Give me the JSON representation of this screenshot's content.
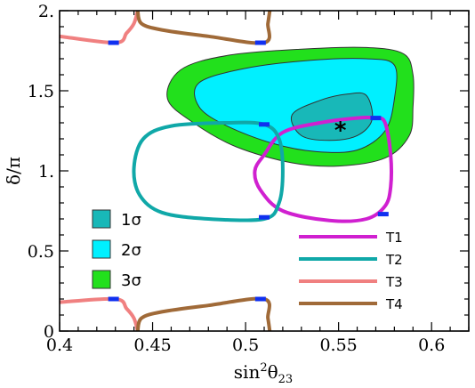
{
  "chart_data": {
    "type": "contour",
    "xlabel_base": "sin",
    "xlabel_sup": "2",
    "xlabel_theta": "θ",
    "xlabel_sub": "23",
    "ylabel": "δ/π",
    "xlim": [
      0.4,
      0.62
    ],
    "ylim": [
      0,
      2
    ],
    "x_ticks": [
      {
        "v": 0.4,
        "label": "0.4"
      },
      {
        "v": 0.45,
        "label": "0.45"
      },
      {
        "v": 0.5,
        "label": "0.5"
      },
      {
        "v": 0.55,
        "label": "0.55"
      },
      {
        "v": 0.6,
        "label": "0.6"
      }
    ],
    "y_ticks": [
      {
        "v": 0,
        "label": "0"
      },
      {
        "v": 0.5,
        "label": "0.5"
      },
      {
        "v": 1,
        "label": "1."
      },
      {
        "v": 1.5,
        "label": "1.5"
      },
      {
        "v": 2,
        "label": "2."
      }
    ],
    "best_fit": {
      "x": 0.551,
      "y": 1.3,
      "marker": "*"
    },
    "regions": [
      {
        "name": "3σ",
        "color": "#22e01c",
        "points": [
          [
            0.465,
            1.63
          ],
          [
            0.49,
            1.72
          ],
          [
            0.53,
            1.76
          ],
          [
            0.565,
            1.77
          ],
          [
            0.585,
            1.73
          ],
          [
            0.59,
            1.6
          ],
          [
            0.59,
            1.4
          ],
          [
            0.588,
            1.22
          ],
          [
            0.575,
            1.08
          ],
          [
            0.55,
            1.03
          ],
          [
            0.525,
            1.05
          ],
          [
            0.495,
            1.15
          ],
          [
            0.472,
            1.3
          ],
          [
            0.458,
            1.45
          ]
        ]
      },
      {
        "name": "2σ",
        "color": "#00f0ff",
        "points": [
          [
            0.475,
            1.55
          ],
          [
            0.5,
            1.64
          ],
          [
            0.535,
            1.69
          ],
          [
            0.565,
            1.7
          ],
          [
            0.58,
            1.66
          ],
          [
            0.58,
            1.45
          ],
          [
            0.575,
            1.25
          ],
          [
            0.56,
            1.13
          ],
          [
            0.538,
            1.12
          ],
          [
            0.515,
            1.17
          ],
          [
            0.49,
            1.28
          ],
          [
            0.475,
            1.4
          ]
        ]
      },
      {
        "name": "1σ",
        "color": "#18b8b8",
        "points": [
          [
            0.525,
            1.35
          ],
          [
            0.54,
            1.44
          ],
          [
            0.555,
            1.48
          ],
          [
            0.565,
            1.47
          ],
          [
            0.568,
            1.32
          ],
          [
            0.56,
            1.22
          ],
          [
            0.545,
            1.19
          ],
          [
            0.53,
            1.22
          ]
        ]
      }
    ],
    "curves": [
      {
        "name": "T1",
        "color": "#d020d0",
        "points": [
          [
            0.51,
            1.1
          ],
          [
            0.52,
            1.24
          ],
          [
            0.54,
            1.3
          ],
          [
            0.56,
            1.33
          ],
          [
            0.57,
            1.33
          ],
          [
            0.575,
            1.3
          ],
          [
            0.578,
            1.1
          ],
          [
            0.578,
            0.9
          ],
          [
            0.575,
            0.78
          ],
          [
            0.565,
            0.7
          ],
          [
            0.545,
            0.69
          ],
          [
            0.52,
            0.75
          ],
          [
            0.508,
            0.88
          ],
          [
            0.505,
            1.0
          ]
        ],
        "markers": [
          [
            0.57,
            1.33
          ],
          [
            0.574,
            0.73
          ]
        ]
      },
      {
        "name": "T2",
        "color": "#10a8a8",
        "points": [
          [
            0.44,
            1.02
          ],
          [
            0.445,
            1.2
          ],
          [
            0.46,
            1.28
          ],
          [
            0.49,
            1.3
          ],
          [
            0.51,
            1.29
          ],
          [
            0.518,
            1.2
          ],
          [
            0.52,
            1.0
          ],
          [
            0.518,
            0.8
          ],
          [
            0.51,
            0.7
          ],
          [
            0.48,
            0.7
          ],
          [
            0.455,
            0.74
          ],
          [
            0.443,
            0.85
          ]
        ],
        "markers": [
          [
            0.51,
            1.29
          ],
          [
            0.51,
            0.71
          ]
        ]
      },
      {
        "name": "T3",
        "color": "#f08080",
        "segments": [
          [
            [
              0.4,
              1.84
            ],
            [
              0.43,
              1.8
            ],
            [
              0.436,
              1.86
            ],
            [
              0.44,
              1.92
            ],
            [
              0.442,
              2.0
            ]
          ],
          [
            [
              0.4,
              0.18
            ],
            [
              0.43,
              0.2
            ],
            [
              0.436,
              0.14
            ],
            [
              0.44,
              0.08
            ],
            [
              0.442,
              0
            ]
          ]
        ],
        "markers": [
          [
            0.429,
            1.8
          ],
          [
            0.429,
            0.2
          ]
        ]
      },
      {
        "name": "T4",
        "color": "#a06a38",
        "segments": [
          [
            [
              0.513,
              2.0
            ],
            [
              0.512,
              1.92
            ],
            [
              0.51,
              1.8
            ],
            [
              0.48,
              1.84
            ],
            [
              0.455,
              1.88
            ],
            [
              0.444,
              1.92
            ],
            [
              0.442,
              2.0
            ]
          ],
          [
            [
              0.513,
              0
            ],
            [
              0.512,
              0.08
            ],
            [
              0.51,
              0.2
            ],
            [
              0.48,
              0.16
            ],
            [
              0.455,
              0.12
            ],
            [
              0.444,
              0.08
            ],
            [
              0.442,
              0
            ]
          ]
        ],
        "markers": [
          [
            0.508,
            1.8
          ],
          [
            0.508,
            0.2
          ]
        ]
      }
    ],
    "marker_color": "#1030f0",
    "legend_regions": [
      {
        "label": "1σ",
        "color": "#18b8b8"
      },
      {
        "label": "2σ",
        "color": "#00f0ff"
      },
      {
        "label": "3σ",
        "color": "#22e01c"
      }
    ],
    "legend_curves": [
      {
        "label": "T1",
        "color": "#d020d0"
      },
      {
        "label": "T2",
        "color": "#10a8a8"
      },
      {
        "label": "T3",
        "color": "#f08080"
      },
      {
        "label": "T4",
        "color": "#a06a38"
      }
    ]
  }
}
